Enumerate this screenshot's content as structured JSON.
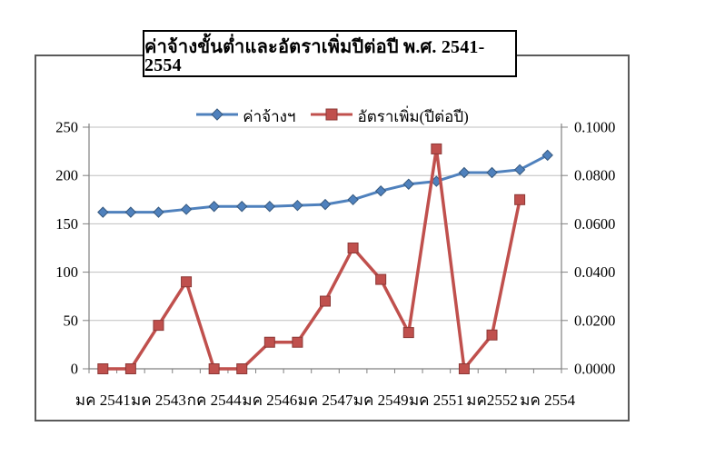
{
  "title": "ค่าจ้างขั้นต่ำและอัตราเพิ่มปีต่อปี พ.ศ. 2541-2554",
  "legend": {
    "series1_label": "ค่าจ้างฯ",
    "series2_label": "อัตราเพิ่ม(ปีต่อปี)"
  },
  "colors": {
    "series1": "#4F81BD",
    "series1_edge": "#36597F",
    "series2": "#C0504D",
    "series2_edge": "#8C3836",
    "gridline": "#BFBFBF",
    "axis": "#808080",
    "text": "#000000"
  },
  "chart_data": {
    "type": "line",
    "title": "ค่าจ้างขั้นต่ำและอัตราเพิ่มปีต่อปี พ.ศ. 2541-2554",
    "categories": [
      "มค 2541",
      "",
      "มค 2543",
      "",
      "กค 2544",
      "",
      "มค 2546",
      "",
      "มค 2547",
      "",
      "มค 2549",
      "",
      "มค 2551",
      "",
      "มค2552",
      "",
      "มค 2554"
    ],
    "series": [
      {
        "name": "ค่าจ้างฯ",
        "axis": "left",
        "marker": "diamond",
        "color": "#4F81BD",
        "values": [
          162,
          162,
          162,
          165,
          168,
          168,
          168,
          169,
          170,
          175,
          184,
          191,
          194,
          203,
          203,
          206,
          221
        ]
      },
      {
        "name": "อัตราเพิ่ม(ปีต่อปี)",
        "axis": "right",
        "marker": "square",
        "color": "#C0504D",
        "values": [
          0.0,
          0.0,
          0.018,
          0.036,
          0.0,
          0.0,
          0.011,
          0.011,
          0.028,
          0.05,
          0.037,
          0.015,
          0.091,
          0.0,
          0.014,
          0.07
        ]
      }
    ],
    "left_axis": {
      "min": 0,
      "max": 250,
      "tick_labels": [
        "0",
        "50",
        "100",
        "150",
        "200",
        "250"
      ]
    },
    "right_axis": {
      "min": 0.0,
      "max": 0.1,
      "tick_labels": [
        "0.0000",
        "0.0200",
        "0.0400",
        "0.0600",
        "0.0800",
        "0.1000"
      ]
    },
    "grid": true,
    "legend_position": "top-center"
  }
}
